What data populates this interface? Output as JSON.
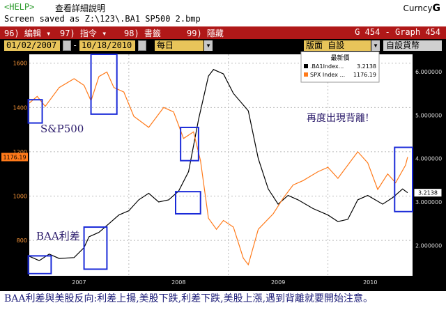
{
  "topbar": {
    "help": "<HELP>",
    "help_text": "查看詳細說明",
    "saved": "Screen saved as Z:\\123\\.BA1 SP500 2.bmp",
    "brand_prefix": "Curncy",
    "brand_suffix": "G"
  },
  "menubar": {
    "items": [
      "96) 編輯 ▾",
      "97) 指令 ▾",
      "98) 書籤",
      "99) 隱藏"
    ],
    "screen_id": "G 454 - Graph 454"
  },
  "controls": {
    "start_date": "01/02/2007",
    "end_date": "10/18/2010",
    "period": "每日",
    "layout": "版面 自設",
    "currency": "自設貨幣"
  },
  "chart_data": {
    "type": "line",
    "legend_title": "最新價",
    "series": [
      {
        "name": ".BA1Index...",
        "last": "3.2138",
        "color": "#000000"
      },
      {
        "name": "SPX Index ...",
        "last": "1176.19",
        "color": "#ff7a1a"
      }
    ],
    "left_axis": {
      "ticks": [
        800,
        1000,
        1200,
        1400,
        1600
      ],
      "ylim": [
        640,
        1640
      ],
      "current_label": "1176.19"
    },
    "right_axis": {
      "ticks": [
        "2.000000",
        "3.000000",
        "4.000000",
        "5.000000",
        "6.000000"
      ],
      "ylim": [
        1.3,
        6.4
      ],
      "current_label": "3.2138"
    },
    "x_labels": [
      "2007",
      "2008",
      "2009",
      "2010"
    ],
    "spx_points": [
      [
        2007.0,
        1420
      ],
      [
        2007.08,
        1450
      ],
      [
        2007.16,
        1405
      ],
      [
        2007.3,
        1490
      ],
      [
        2007.45,
        1530
      ],
      [
        2007.55,
        1500
      ],
      [
        2007.62,
        1430
      ],
      [
        2007.7,
        1540
      ],
      [
        2007.78,
        1560
      ],
      [
        2007.85,
        1490
      ],
      [
        2007.95,
        1470
      ],
      [
        2008.05,
        1360
      ],
      [
        2008.2,
        1310
      ],
      [
        2008.35,
        1400
      ],
      [
        2008.45,
        1380
      ],
      [
        2008.55,
        1260
      ],
      [
        2008.65,
        1290
      ],
      [
        2008.72,
        1160
      ],
      [
        2008.8,
        900
      ],
      [
        2008.88,
        850
      ],
      [
        2008.95,
        890
      ],
      [
        2009.05,
        860
      ],
      [
        2009.15,
        720
      ],
      [
        2009.2,
        690
      ],
      [
        2009.3,
        850
      ],
      [
        2009.45,
        920
      ],
      [
        2009.55,
        990
      ],
      [
        2009.65,
        1050
      ],
      [
        2009.75,
        1070
      ],
      [
        2009.9,
        1110
      ],
      [
        2010.0,
        1130
      ],
      [
        2010.1,
        1080
      ],
      [
        2010.3,
        1200
      ],
      [
        2010.4,
        1150
      ],
      [
        2010.5,
        1030
      ],
      [
        2010.6,
        1100
      ],
      [
        2010.68,
        1060
      ],
      [
        2010.78,
        1140
      ],
      [
        2010.8,
        1176.19
      ]
    ],
    "ba1_points": [
      [
        2007.0,
        1.75
      ],
      [
        2007.1,
        1.65
      ],
      [
        2007.2,
        1.8
      ],
      [
        2007.3,
        1.7
      ],
      [
        2007.45,
        1.72
      ],
      [
        2007.55,
        1.95
      ],
      [
        2007.6,
        2.2
      ],
      [
        2007.7,
        2.3
      ],
      [
        2007.8,
        2.5
      ],
      [
        2007.9,
        2.7
      ],
      [
        2008.0,
        2.8
      ],
      [
        2008.1,
        3.05
      ],
      [
        2008.2,
        3.2
      ],
      [
        2008.3,
        3.0
      ],
      [
        2008.4,
        3.05
      ],
      [
        2008.5,
        3.25
      ],
      [
        2008.6,
        3.7
      ],
      [
        2008.7,
        4.9
      ],
      [
        2008.8,
        5.9
      ],
      [
        2008.85,
        6.05
      ],
      [
        2008.95,
        5.95
      ],
      [
        2009.05,
        5.5
      ],
      [
        2009.2,
        5.1
      ],
      [
        2009.3,
        4.0
      ],
      [
        2009.4,
        3.3
      ],
      [
        2009.5,
        2.95
      ],
      [
        2009.6,
        3.15
      ],
      [
        2009.7,
        3.05
      ],
      [
        2009.85,
        2.85
      ],
      [
        2010.0,
        2.7
      ],
      [
        2010.1,
        2.55
      ],
      [
        2010.2,
        2.6
      ],
      [
        2010.3,
        3.05
      ],
      [
        2010.4,
        3.15
      ],
      [
        2010.55,
        2.95
      ],
      [
        2010.65,
        3.1
      ],
      [
        2010.75,
        3.3
      ],
      [
        2010.8,
        3.2138
      ]
    ],
    "annotations": {
      "spx": "S&P500",
      "ba1": "BAA利差",
      "divergence": "再度出現背離!"
    },
    "highlight_boxes": [
      {
        "from": [
          2006.99,
          1435
        ],
        "to": [
          2007.13,
          1330
        ],
        "name": "box-spx-2007-early"
      },
      {
        "from": [
          2007.62,
          1640
        ],
        "to": [
          2007.88,
          1370
        ],
        "name": "box-spx-2007-peak"
      },
      {
        "from": [
          2008.52,
          1310
        ],
        "to": [
          2008.7,
          1160
        ],
        "name": "box-spx-2008-mid"
      },
      {
        "from": [
          2008.47,
          1020
        ],
        "to": [
          2008.72,
          920
        ],
        "name": "box-ba1-2008"
      },
      {
        "from": [
          2006.99,
          730
        ],
        "to": [
          2007.22,
          650
        ],
        "name": "box-ba1-2007-early"
      },
      {
        "from": [
          2007.55,
          860
        ],
        "to": [
          2007.78,
          670
        ],
        "name": "box-ba1-2007-late"
      },
      {
        "from": [
          2010.67,
          1220
        ],
        "to": [
          2010.85,
          930
        ],
        "name": "box-2010-divergence"
      }
    ]
  },
  "caption": "BAA利差與美股反向:利差上揚,美股下跌,利差下跌,美股上漲,遇到背離就要開始注意。"
}
